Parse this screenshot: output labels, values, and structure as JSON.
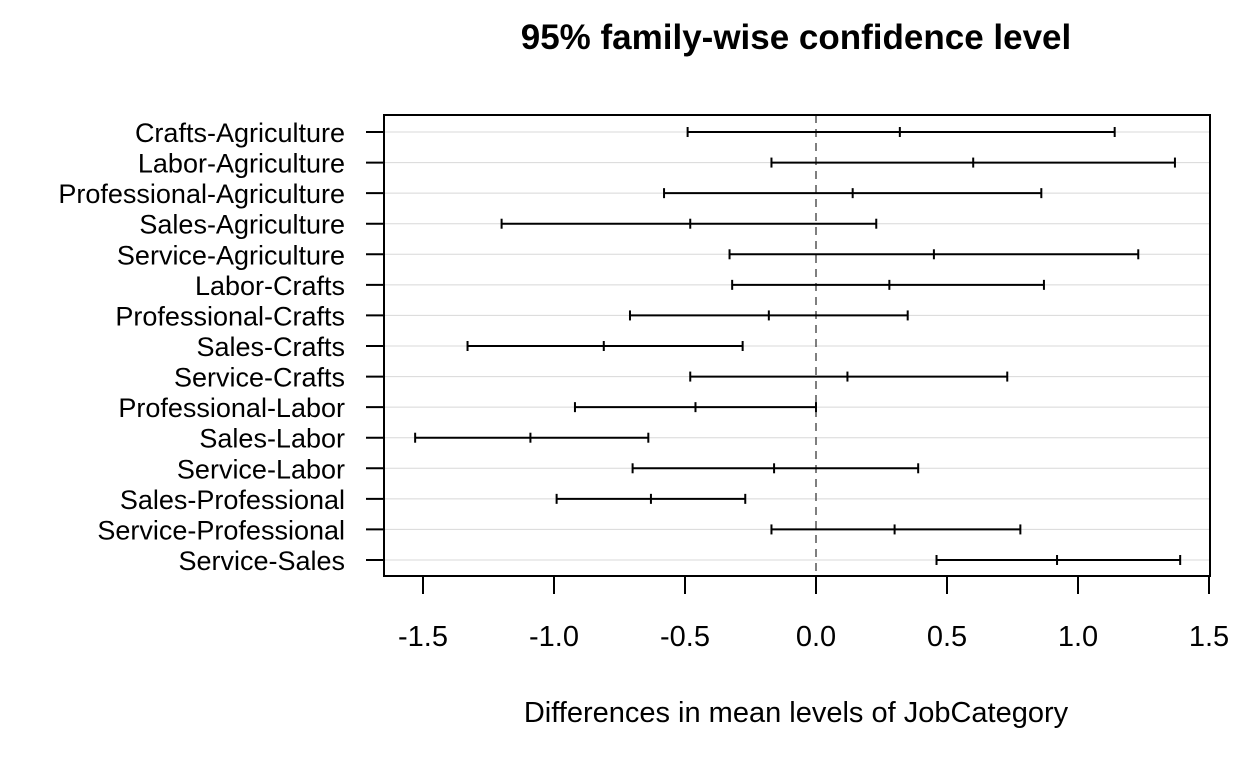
{
  "chart_data": {
    "type": "interval",
    "title": "95% family-wise confidence level",
    "xlabel": "Differences in mean levels of JobCategory",
    "ylabel": "",
    "xlim": [
      -1.65,
      1.5
    ],
    "xticks": [
      -1.5,
      -1.0,
      -0.5,
      0.0,
      0.5,
      1.0,
      1.5
    ],
    "xtick_labels": [
      "-1.5",
      "-1.0",
      "-0.5",
      "0.0",
      "0.5",
      "1.0",
      "1.5"
    ],
    "reference_line": 0,
    "grid": "horizontal",
    "categories": [
      "Crafts-Agriculture",
      "Labor-Agriculture",
      "Professional-Agriculture",
      "Sales-Agriculture",
      "Service-Agriculture",
      "Labor-Crafts",
      "Professional-Crafts",
      "Sales-Crafts",
      "Service-Crafts",
      "Professional-Labor",
      "Sales-Labor",
      "Service-Labor",
      "Sales-Professional",
      "Service-Professional",
      "Service-Sales"
    ],
    "intervals": [
      {
        "lwr": -0.49,
        "diff": 0.32,
        "upr": 1.14
      },
      {
        "lwr": -0.17,
        "diff": 0.6,
        "upr": 1.37
      },
      {
        "lwr": -0.58,
        "diff": 0.14,
        "upr": 0.86
      },
      {
        "lwr": -1.2,
        "diff": -0.48,
        "upr": 0.23
      },
      {
        "lwr": -0.33,
        "diff": 0.45,
        "upr": 1.23
      },
      {
        "lwr": -0.32,
        "diff": 0.28,
        "upr": 0.87
      },
      {
        "lwr": -0.71,
        "diff": -0.18,
        "upr": 0.35
      },
      {
        "lwr": -1.33,
        "diff": -0.81,
        "upr": -0.28
      },
      {
        "lwr": -0.48,
        "diff": 0.12,
        "upr": 0.73
      },
      {
        "lwr": -0.92,
        "diff": -0.46,
        "upr": 0.0
      },
      {
        "lwr": -1.53,
        "diff": -1.09,
        "upr": -0.64
      },
      {
        "lwr": -0.7,
        "diff": -0.16,
        "upr": 0.39
      },
      {
        "lwr": -0.99,
        "diff": -0.63,
        "upr": -0.27
      },
      {
        "lwr": -0.17,
        "diff": 0.3,
        "upr": 0.78
      },
      {
        "lwr": 0.46,
        "diff": 0.92,
        "upr": 1.39
      }
    ]
  }
}
